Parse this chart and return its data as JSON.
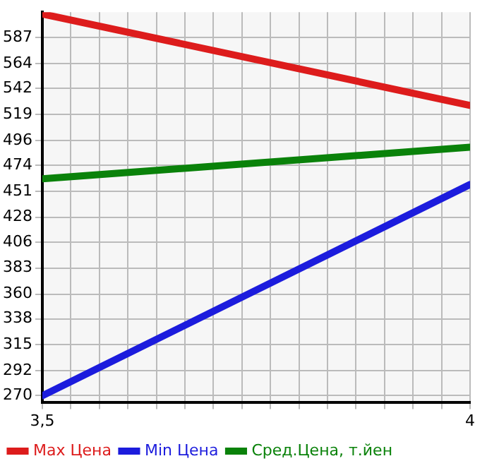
{
  "chart_data": {
    "type": "line",
    "x": [
      3.5,
      4
    ],
    "series": [
      {
        "name": "Max Цена",
        "color": "#dd1c1c",
        "values": [
          608,
          527
        ]
      },
      {
        "name": "Min Цена",
        "color": "#1c1cdd",
        "values": [
          270,
          457
        ]
      },
      {
        "name": "Сред.Цена, т.йен",
        "color": "#0a820a",
        "values": [
          462,
          490
        ]
      }
    ],
    "xlim": [
      3.5,
      4
    ],
    "xticks": [
      {
        "value": 3.5,
        "label": "3,5"
      },
      {
        "value": 3.5333,
        "label": null
      },
      {
        "value": 3.5667,
        "label": null
      },
      {
        "value": 3.6,
        "label": null
      },
      {
        "value": 3.6333,
        "label": null
      },
      {
        "value": 3.6667,
        "label": null
      },
      {
        "value": 3.7,
        "label": null
      },
      {
        "value": 3.7333,
        "label": null
      },
      {
        "value": 3.7667,
        "label": null
      },
      {
        "value": 3.8,
        "label": null
      },
      {
        "value": 3.8333,
        "label": null
      },
      {
        "value": 3.8667,
        "label": null
      },
      {
        "value": 3.9,
        "label": null
      },
      {
        "value": 3.9333,
        "label": null
      },
      {
        "value": 3.9667,
        "label": null
      },
      {
        "value": 4,
        "label": "4"
      }
    ],
    "ylim": [
      264.3,
      609.6
    ],
    "yticks": [
      270,
      292,
      315,
      338,
      360,
      383,
      406,
      428,
      451,
      474,
      496,
      519,
      542,
      564,
      587
    ],
    "grid": true,
    "legend": "bottom",
    "marker": "none",
    "line_style": "solid"
  }
}
